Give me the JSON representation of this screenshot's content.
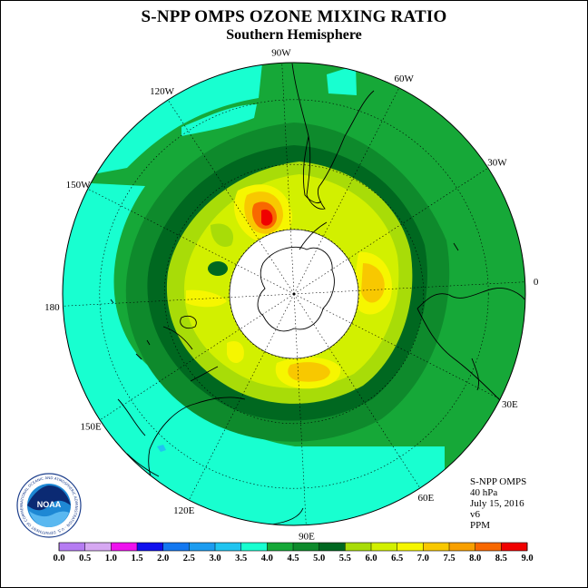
{
  "title": "S-NPP OMPS OZONE MIXING RATIO",
  "subtitle": "Southern Hemisphere",
  "meridian_labels": [
    "0",
    "30E",
    "60E",
    "90E",
    "120E",
    "150E",
    "180",
    "150W",
    "120W",
    "90W",
    "60W",
    "30W"
  ],
  "info": {
    "product": "S-NPP OMPS",
    "level": "40 hPa",
    "date": "July 15, 2016",
    "version": "v6",
    "units": "PPM"
  },
  "logo": {
    "text": "NOAA",
    "ring_text": "NATIONAL OCEANIC AND ATMOSPHERIC ADMINISTRATION - U.S. DEPARTMENT OF COMMERCE"
  },
  "colorbar": {
    "ticks": [
      "0.0",
      "0.5",
      "1.0",
      "1.5",
      "2.0",
      "2.5",
      "3.0",
      "3.5",
      "4.0",
      "4.5",
      "5.0",
      "5.5",
      "6.0",
      "6.5",
      "7.0",
      "7.5",
      "8.0",
      "8.5",
      "9.0"
    ],
    "colors": [
      "#b57cf2",
      "#d6a8f2",
      "#ee12ee",
      "#1010ee",
      "#1478f0",
      "#1c9cf0",
      "#20c4f0",
      "#18ffd0",
      "#16a838",
      "#0e8a2c",
      "#006820",
      "#a8dc08",
      "#d2f000",
      "#f6f600",
      "#f8c800",
      "#f8a000",
      "#f86800",
      "#f00000",
      "#8c5c3c"
    ]
  }
}
